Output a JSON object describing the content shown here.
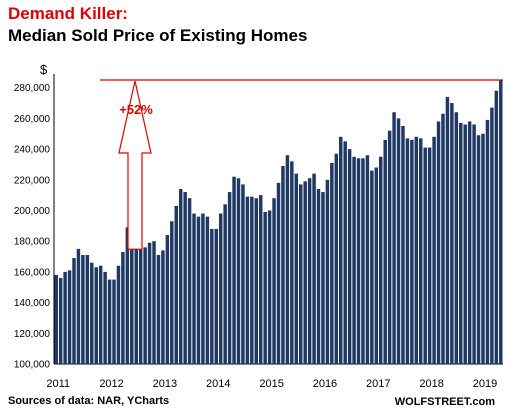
{
  "header": {
    "title_red": "Demand Killer:",
    "title_black": "Median Sold Price of Existing Homes"
  },
  "footer": {
    "source": "Sources of data: NAR, YCharts",
    "brand": "WOLFSTREET.com"
  },
  "colors": {
    "bar": "#1f3864",
    "accent": "#e00000"
  },
  "chart_data": {
    "type": "bar",
    "title": "Median Sold Price of Existing Homes",
    "ylabel": "$",
    "ylim": [
      100000,
      285000
    ],
    "yticks": [
      100000,
      120000,
      140000,
      160000,
      180000,
      200000,
      220000,
      240000,
      260000,
      280000
    ],
    "ytick_labels": [
      "100,000",
      "120,000",
      "140,000",
      "160,000",
      "180,000",
      "200,000",
      "220,000",
      "240,000",
      "260,000",
      "280,000"
    ],
    "xtick_labels": [
      "2011",
      "2012",
      "2013",
      "2014",
      "2015",
      "2016",
      "2017",
      "2018",
      "2019"
    ],
    "grid": false,
    "annotation": {
      "text": "+52%",
      "reference_value": 285000
    },
    "start_month": "2011-01",
    "values": [
      158000,
      156000,
      160000,
      161000,
      169000,
      175000,
      171000,
      171000,
      166000,
      163000,
      164000,
      160000,
      155000,
      155000,
      164000,
      173000,
      189000,
      188000,
      185000,
      178000,
      176000,
      179000,
      180000,
      171000,
      174000,
      184000,
      193000,
      203000,
      214000,
      212000,
      208000,
      198000,
      196000,
      198000,
      196000,
      188000,
      188000,
      198000,
      204000,
      212000,
      222000,
      221000,
      217000,
      209000,
      209000,
      208000,
      210000,
      199000,
      200000,
      208000,
      218000,
      229000,
      236000,
      232000,
      224000,
      217000,
      219000,
      221000,
      224000,
      214000,
      212000,
      220000,
      231000,
      237000,
      248000,
      245000,
      240000,
      235000,
      234000,
      234000,
      236000,
      226000,
      228000,
      235000,
      246000,
      252000,
      264000,
      260000,
      255000,
      247000,
      246000,
      248000,
      247000,
      241000,
      241000,
      248000,
      258000,
      263000,
      274000,
      270000,
      264000,
      257000,
      256000,
      258000,
      256000,
      249000,
      250000,
      259000,
      267000,
      278000,
      285000
    ]
  }
}
